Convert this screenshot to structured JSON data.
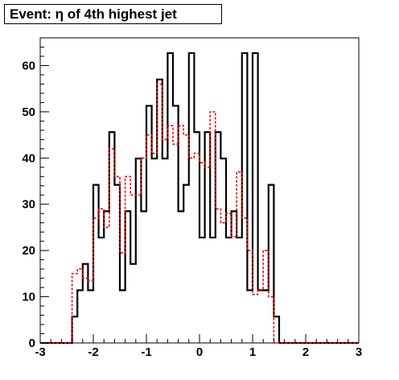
{
  "chart_data": {
    "type": "histogram",
    "title": "Event: η of 4th highest jet",
    "xlabel": "",
    "ylabel": "",
    "xlim": [
      -3,
      3
    ],
    "ylim": [
      0,
      66
    ],
    "xticks": [
      -3,
      -2,
      -1,
      0,
      1,
      2,
      3
    ],
    "xtick_labels": [
      "-3",
      "-2",
      "-1",
      "0",
      "1",
      "2",
      "3"
    ],
    "yticks": [
      0,
      10,
      20,
      30,
      40,
      50,
      60
    ],
    "ytick_labels": [
      "0",
      "10",
      "20",
      "30",
      "40",
      "50",
      "60"
    ],
    "bin_edges": [
      -3.0,
      -2.9,
      -2.8,
      -2.7,
      -2.6,
      -2.5,
      -2.4,
      -2.3,
      -2.2,
      -2.1,
      -2.0,
      -1.9,
      -1.8,
      -1.7,
      -1.6,
      -1.5,
      -1.4,
      -1.3,
      -1.2,
      -1.1,
      -1.0,
      -0.9,
      -0.8,
      -0.7,
      -0.6,
      -0.5,
      -0.4,
      -0.3,
      -0.2,
      -0.1,
      0.0,
      0.1,
      0.2,
      0.3,
      0.4,
      0.5,
      0.6,
      0.7,
      0.8,
      0.9,
      1.0,
      1.1,
      1.2,
      1.3,
      1.4,
      1.5,
      1.6,
      1.7,
      1.8,
      1.9,
      2.0,
      2.1,
      2.2,
      2.3,
      2.4,
      2.5,
      2.6,
      2.7,
      2.8,
      2.9,
      3.0
    ],
    "grid": false,
    "series": [
      {
        "color": "#000000",
        "style": "solid",
        "values": [
          0,
          0,
          0,
          0,
          0,
          0,
          5.7,
          11.4,
          17.1,
          11.4,
          34.2,
          22.8,
          28.5,
          45.6,
          34.2,
          11.4,
          28.5,
          17.1,
          39.9,
          28.5,
          51.3,
          39.9,
          57.0,
          39.9,
          62.7,
          51.3,
          28.5,
          34.2,
          62.7,
          45.6,
          22.8,
          45.6,
          22.8,
          45.6,
          39.9,
          22.8,
          28.5,
          22.8,
          62.7,
          11.4,
          62.7,
          11.4,
          11.4,
          34.2,
          5.7,
          0,
          0,
          0,
          0,
          0,
          0,
          0,
          0,
          0,
          0,
          0,
          0,
          0,
          0,
          0
        ]
      },
      {
        "color": "#ff0000",
        "style": "dashed",
        "values": [
          0,
          0,
          0,
          0,
          0,
          0,
          15.0,
          16.0,
          14.0,
          13.5,
          27.0,
          29.0,
          25.0,
          42.0,
          36.0,
          19.5,
          36.0,
          32.0,
          32.0,
          40.0,
          45.0,
          41.0,
          56.0,
          44.0,
          47.0,
          43.0,
          47.0,
          45.0,
          40.0,
          41.0,
          39.0,
          38.0,
          50.0,
          29.0,
          26.0,
          28.0,
          23.0,
          37.0,
          27.0,
          20.0,
          10.5,
          11.5,
          20.0,
          10.0,
          0,
          0,
          0,
          0,
          0,
          0,
          0,
          0,
          0,
          0,
          0,
          0,
          0,
          0,
          0,
          0
        ]
      }
    ]
  }
}
